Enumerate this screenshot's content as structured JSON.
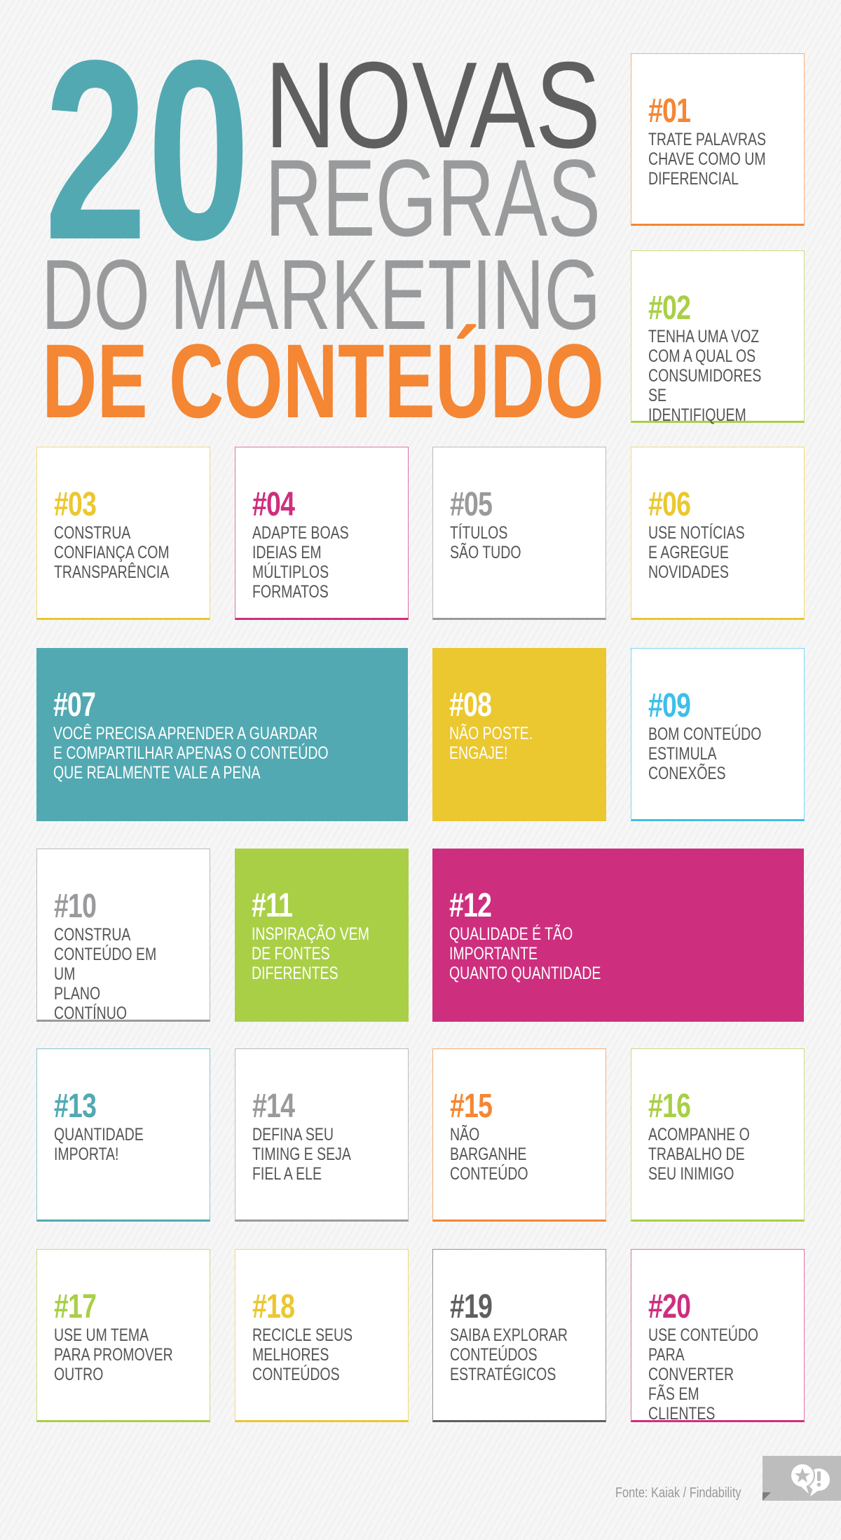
{
  "title": {
    "number": "20",
    "line1": "NOVAS",
    "line2": "REGRAS",
    "line3": "DO MARKETING",
    "line4": "DE CONTEÚDO"
  },
  "colors": {
    "teal": "#52a9b2",
    "orange": "#f48634",
    "green": "#a9cf47",
    "yellow": "#ebc730",
    "magenta": "#cd2f7e",
    "gray": "#999a9c",
    "dark_gray": "#5f5f60",
    "blue": "#3ebfe9"
  },
  "rules": [
    {
      "number": "#01",
      "text": "TRATE PALAVRAS\nCHAVE COMO UM\nDIFERENCIAL",
      "color": "#f48634",
      "style": "outline"
    },
    {
      "number": "#02",
      "text": "TENHA UMA VOZ\nCOM A QUAL OS\nCONSUMIDORES SE\nIDENTIFIQUEM",
      "color": "#a9cf47",
      "style": "outline"
    },
    {
      "number": "#03",
      "text": "CONSTRUA\nCONFIANÇA COM\nTRANSPARÊNCIA",
      "color": "#ebc730",
      "style": "outline"
    },
    {
      "number": "#04",
      "text": "ADAPTE BOAS\nIDEIAS EM\nMÚLTIPLOS\nFORMATOS",
      "color": "#cd2f7e",
      "style": "outline"
    },
    {
      "number": "#05",
      "text": "TÍTULOS\nSÃO TUDO",
      "color": "#999a9c",
      "style": "outline"
    },
    {
      "number": "#06",
      "text": "USE NOTÍCIAS\nE AGREGUE\nNOVIDADES",
      "color": "#ebc730",
      "style": "outline"
    },
    {
      "number": "#07",
      "text": "VOCÊ PRECISA APRENDER A GUARDAR\nE COMPARTILHAR APENAS O CONTEÚDO\nQUE REALMENTE VALE A PENA",
      "color": "#52a9b2",
      "style": "filled"
    },
    {
      "number": "#08",
      "text": "NÃO POSTE.\nENGAJE!",
      "color": "#ebc730",
      "style": "filled"
    },
    {
      "number": "#09",
      "text": "BOM CONTEÚDO\nESTIMULA\nCONEXÕES",
      "color": "#3ebfe9",
      "style": "outline"
    },
    {
      "number": "#10",
      "text": "CONSTRUA\nCONTEÚDO EM UM\nPLANO CONTÍNUO",
      "color": "#999a9c",
      "style": "outline"
    },
    {
      "number": "#11",
      "text": "INSPIRAÇÃO VEM\nDE FONTES\nDIFERENTES",
      "color": "#a9cf47",
      "style": "filled"
    },
    {
      "number": "#12",
      "text": "QUALIDADE É TÃO\nIMPORTANTE\nQUANTO QUANTIDADE",
      "color": "#cd2f7e",
      "style": "filled"
    },
    {
      "number": "#13",
      "text": "QUANTIDADE\nIMPORTA!",
      "color": "#52a9b2",
      "style": "outline"
    },
    {
      "number": "#14",
      "text": "DEFINA SEU\nTIMING E SEJA\nFIEL A ELE",
      "color": "#999a9c",
      "style": "outline"
    },
    {
      "number": "#15",
      "text": "NÃO\nBARGANHE\nCONTEÚDO",
      "color": "#f48634",
      "style": "outline"
    },
    {
      "number": "#16",
      "text": "ACOMPANHE O\nTRABALHO DE\nSEU INIMIGO",
      "color": "#a9cf47",
      "style": "outline"
    },
    {
      "number": "#17",
      "text": "USE UM TEMA\nPARA PROMOVER\nOUTRO",
      "color": "#a9cf47",
      "style": "outline"
    },
    {
      "number": "#18",
      "text": "RECICLE SEUS\nMELHORES\nCONTEÚDOS",
      "color": "#ebc730",
      "style": "outline"
    },
    {
      "number": "#19",
      "text": "SAIBA EXPLORAR\nCONTEÚDOS\nESTRATÉGICOS",
      "color": "#5f5f60",
      "style": "outline"
    },
    {
      "number": "#20",
      "text": "USE CONTEÚDO\nPARA CONVERTER\nFÃS EM CLIENTES",
      "color": "#cd2f7e",
      "style": "outline"
    }
  ],
  "footer": {
    "source": "Fonte: Kaiak / Findability",
    "badge_icon": "speech-bubbles-star-exclamation-icon"
  }
}
